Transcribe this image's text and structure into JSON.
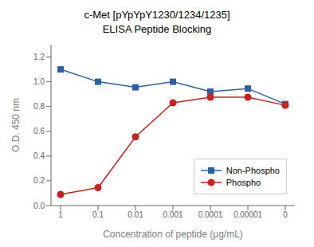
{
  "chart_data": {
    "type": "line",
    "title": "c-Met [pYpYpY1230/1234/1235]",
    "subtitle": "ELISA Peptide Blocking",
    "xlabel": "Concentration of peptide (μg/mL)",
    "ylabel": "O.D. 450 nm",
    "categories": [
      "1",
      "0.1",
      "0.01",
      "0.001",
      "0.0001",
      "0.00001",
      "0"
    ],
    "series": [
      {
        "name": "Non-Phospho",
        "color": "#2e5fa3",
        "marker": "square",
        "values": [
          1.1,
          1.0,
          0.955,
          1.0,
          0.92,
          0.945,
          0.82
        ]
      },
      {
        "name": "Phospho",
        "color": "#cc2020",
        "marker": "circle",
        "values": [
          0.09,
          0.145,
          0.555,
          0.83,
          0.875,
          0.875,
          0.81
        ]
      }
    ],
    "ylim": [
      0.0,
      1.3
    ],
    "yticks": [
      {
        "value": 0,
        "label": "0.0"
      },
      0.2,
      0.4,
      0.6,
      0.8,
      {
        "value": 1,
        "label": "1.0"
      },
      1.2
    ],
    "grid": false,
    "legend": "lower right"
  }
}
